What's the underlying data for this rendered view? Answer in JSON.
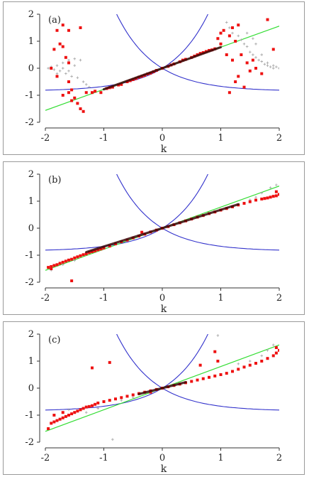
{
  "chart_data": [
    {
      "type": "scatter",
      "panel_label": "(a)",
      "xlabel": "k",
      "ylabel": "",
      "xlim": [
        -2,
        2
      ],
      "ylim": [
        -2,
        2
      ],
      "x_ticks": [
        "-2",
        "-1",
        "0",
        "1",
        "2"
      ],
      "y_ticks": [
        "2",
        "1",
        "0",
        "-1",
        "-2"
      ],
      "grid": false,
      "colors": {
        "curves": "#3333cc",
        "line": "#33dd33",
        "red": "#ee1111",
        "gray": "#aaaaaa",
        "dark": "#3a0a0a"
      },
      "lines": {
        "green": {
          "slope": 0.78
        },
        "blue_up": {
          "a": -0.85,
          "c": 0.85,
          "b": 1.55
        },
        "blue_down": {
          "a": -0.85,
          "c": 0.85,
          "b": -1.55
        }
      },
      "red_points": [
        [
          -1.8,
          1.4
        ],
        [
          -1.7,
          1.6
        ],
        [
          -1.6,
          1.4
        ],
        [
          -1.75,
          0.9
        ],
        [
          -1.85,
          0.7
        ],
        [
          -1.7,
          0.8
        ],
        [
          -1.65,
          0.4
        ],
        [
          -1.6,
          0.2
        ],
        [
          -1.9,
          0.0
        ],
        [
          -1.8,
          -0.3
        ],
        [
          -1.6,
          -0.5
        ],
        [
          -1.55,
          -0.8
        ],
        [
          -1.7,
          -1.0
        ],
        [
          -1.55,
          -1.2
        ],
        [
          -1.45,
          -1.3
        ],
        [
          -1.4,
          -1.5
        ],
        [
          -1.35,
          -1.6
        ],
        [
          -1.5,
          -1.1
        ],
        [
          -1.6,
          -0.9
        ],
        [
          -1.4,
          1.5
        ],
        [
          -1.3,
          -0.9
        ],
        [
          -1.2,
          -0.9
        ],
        [
          -1.15,
          -0.85
        ],
        [
          -1.05,
          -0.9
        ],
        [
          -0.95,
          -0.75
        ],
        [
          -0.9,
          -0.72
        ],
        [
          -0.85,
          -0.7
        ],
        [
          -0.75,
          -0.62
        ],
        [
          -0.7,
          -0.6
        ],
        [
          -0.6,
          -0.5
        ],
        [
          -0.55,
          -0.46
        ],
        [
          -0.5,
          -0.42
        ],
        [
          -0.45,
          -0.38
        ],
        [
          -0.4,
          -0.33
        ],
        [
          -0.35,
          -0.3
        ],
        [
          -0.3,
          -0.26
        ],
        [
          -0.25,
          -0.21
        ],
        [
          -0.2,
          -0.18
        ],
        [
          -0.15,
          -0.13
        ],
        [
          -0.1,
          -0.08
        ],
        [
          0.0,
          0.0
        ],
        [
          0.1,
          0.07
        ],
        [
          0.15,
          0.12
        ],
        [
          0.2,
          0.16
        ],
        [
          0.3,
          0.24
        ],
        [
          0.35,
          0.3
        ],
        [
          0.4,
          0.33
        ],
        [
          0.5,
          0.4
        ],
        [
          0.55,
          0.45
        ],
        [
          0.6,
          0.5
        ],
        [
          0.65,
          0.55
        ],
        [
          0.7,
          0.58
        ],
        [
          0.75,
          0.62
        ],
        [
          0.8,
          0.66
        ],
        [
          0.85,
          0.68
        ],
        [
          0.9,
          0.72
        ],
        [
          0.95,
          1.1
        ],
        [
          1.0,
          1.3
        ],
        [
          1.05,
          1.4
        ],
        [
          1.15,
          1.2
        ],
        [
          1.2,
          1.5
        ],
        [
          1.25,
          1.0
        ],
        [
          1.3,
          1.6
        ],
        [
          1.1,
          0.5
        ],
        [
          1.2,
          0.3
        ],
        [
          1.3,
          -0.3
        ],
        [
          1.15,
          -0.9
        ],
        [
          1.4,
          -0.7
        ],
        [
          1.5,
          -0.1
        ],
        [
          1.55,
          0.3
        ],
        [
          1.6,
          0.0
        ],
        [
          1.45,
          0.2
        ],
        [
          1.35,
          0.5
        ],
        [
          1.0,
          0.9
        ],
        [
          1.8,
          1.8
        ],
        [
          1.9,
          0.7
        ],
        [
          1.7,
          -0.2
        ],
        [
          1.25,
          -0.5
        ]
      ],
      "gray_points": [
        [
          -1.95,
          0.0
        ],
        [
          -1.9,
          0.05
        ],
        [
          -1.85,
          -0.05
        ],
        [
          -1.8,
          0.1
        ],
        [
          -1.75,
          -0.1
        ],
        [
          -1.7,
          0.2
        ],
        [
          -1.65,
          -0.2
        ],
        [
          -1.6,
          0.3
        ],
        [
          -1.55,
          -0.3
        ],
        [
          -1.5,
          0.35
        ],
        [
          -1.45,
          -0.35
        ],
        [
          -1.4,
          0.3
        ],
        [
          -1.35,
          -0.5
        ],
        [
          -1.3,
          -0.6
        ],
        [
          -1.25,
          -0.7
        ],
        [
          -1.8,
          -0.2
        ],
        [
          -1.7,
          0.0
        ],
        [
          -1.6,
          -0.1
        ],
        [
          -1.5,
          0.1
        ],
        [
          1.1,
          1.7
        ],
        [
          1.15,
          1.5
        ],
        [
          1.2,
          1.3
        ],
        [
          1.3,
          1.2
        ],
        [
          1.35,
          1.05
        ],
        [
          1.4,
          0.9
        ],
        [
          1.45,
          0.8
        ],
        [
          1.5,
          0.6
        ],
        [
          1.55,
          0.5
        ],
        [
          1.6,
          0.4
        ],
        [
          1.65,
          0.3
        ],
        [
          1.7,
          0.25
        ],
        [
          1.75,
          0.15
        ],
        [
          1.8,
          0.1
        ],
        [
          1.85,
          0.05
        ],
        [
          1.9,
          0.0
        ],
        [
          1.95,
          0.05
        ],
        [
          2.0,
          0.0
        ],
        [
          1.45,
          1.3
        ],
        [
          1.55,
          1.1
        ],
        [
          1.6,
          0.9
        ],
        [
          1.7,
          0.5
        ],
        [
          1.8,
          0.2
        ],
        [
          1.9,
          0.1
        ]
      ],
      "dark_band": {
        "x_start": -1.0,
        "x_end": 1.0,
        "slope": 0.78
      }
    },
    {
      "type": "scatter",
      "panel_label": "(b)",
      "xlabel": "k",
      "ylabel": "",
      "xlim": [
        -2,
        2
      ],
      "ylim": [
        -2,
        2
      ],
      "x_ticks": [
        "-2",
        "-1",
        "0",
        "1",
        "2"
      ],
      "y_ticks": [
        "2",
        "1",
        "0",
        "-1",
        "-2"
      ],
      "grid": false,
      "colors": {
        "curves": "#3333cc",
        "line": "#33dd33",
        "red": "#ee1111",
        "gray": "#aaaaaa",
        "dark": "#3a0a0a"
      },
      "lines": {
        "green": {
          "slope": 0.78
        },
        "blue_up": {
          "a": -0.85,
          "c": 0.85,
          "b": 1.55
        },
        "blue_down": {
          "a": -0.85,
          "c": 0.85,
          "b": -1.55
        }
      },
      "red_points": [
        [
          -1.95,
          -1.45
        ],
        [
          -1.9,
          -1.42
        ],
        [
          -1.85,
          -1.38
        ],
        [
          -1.8,
          -1.35
        ],
        [
          -1.75,
          -1.3
        ],
        [
          -1.7,
          -1.26
        ],
        [
          -1.65,
          -1.22
        ],
        [
          -1.6,
          -1.18
        ],
        [
          -1.55,
          -1.15
        ],
        [
          -1.5,
          -1.1
        ],
        [
          -1.45,
          -1.06
        ],
        [
          -1.4,
          -1.02
        ],
        [
          -1.35,
          -0.98
        ],
        [
          -1.3,
          -0.95
        ],
        [
          -1.25,
          -0.9
        ],
        [
          -1.2,
          -0.87
        ],
        [
          -1.15,
          -0.84
        ],
        [
          -1.1,
          -0.8
        ],
        [
          -1.05,
          -0.77
        ],
        [
          -1.0,
          -0.73
        ],
        [
          -0.9,
          -0.66
        ],
        [
          -0.8,
          -0.58
        ],
        [
          -0.7,
          -0.5
        ],
        [
          -0.6,
          -0.44
        ],
        [
          -0.5,
          -0.36
        ],
        [
          -0.4,
          -0.29
        ],
        [
          -0.35,
          -0.15
        ],
        [
          -0.3,
          -0.22
        ],
        [
          -0.2,
          -0.14
        ],
        [
          -0.1,
          -0.07
        ],
        [
          0.0,
          0.0
        ],
        [
          0.1,
          0.06
        ],
        [
          0.2,
          0.13
        ],
        [
          0.3,
          0.2
        ],
        [
          0.4,
          0.27
        ],
        [
          0.5,
          0.34
        ],
        [
          0.6,
          0.41
        ],
        [
          0.7,
          0.47
        ],
        [
          0.8,
          0.54
        ],
        [
          0.9,
          0.6
        ],
        [
          1.0,
          0.67
        ],
        [
          1.1,
          0.73
        ],
        [
          1.2,
          0.79
        ],
        [
          1.3,
          0.86
        ],
        [
          1.4,
          0.92
        ],
        [
          1.5,
          0.98
        ],
        [
          1.6,
          1.04
        ],
        [
          1.7,
          1.08
        ],
        [
          1.8,
          1.12
        ],
        [
          1.85,
          1.15
        ],
        [
          1.9,
          1.18
        ],
        [
          1.95,
          1.2
        ],
        [
          2.0,
          1.25
        ],
        [
          -1.55,
          -1.95
        ],
        [
          1.95,
          1.35
        ],
        [
          1.75,
          1.1
        ],
        [
          -1.9,
          -1.5
        ]
      ],
      "gray_points": [
        [
          -1.9,
          -1.55
        ],
        [
          -1.7,
          -1.35
        ],
        [
          -1.5,
          -1.2
        ],
        [
          1.7,
          1.3
        ],
        [
          1.85,
          1.5
        ],
        [
          1.95,
          1.6
        ],
        [
          1.6,
          1.15
        ],
        [
          1.5,
          1.05
        ]
      ],
      "dark_band": {
        "x_start": -1.3,
        "x_end": 1.3,
        "slope": 0.68
      }
    },
    {
      "type": "scatter",
      "panel_label": "(c)",
      "xlabel": "k",
      "ylabel": "",
      "xlim": [
        -2,
        2
      ],
      "ylim": [
        -2,
        2
      ],
      "x_ticks": [
        "-2",
        "-1",
        "0",
        "1",
        "2"
      ],
      "y_ticks": [
        "2",
        "1",
        "0",
        "-1",
        "-2"
      ],
      "grid": false,
      "colors": {
        "curves": "#3333cc",
        "line": "#33dd33",
        "red": "#ee1111",
        "gray": "#aaaaaa",
        "dark": "#3a0a0a"
      },
      "lines": {
        "green": {
          "slope": 0.8
        },
        "blue_up": {
          "a": -0.85,
          "c": 0.85,
          "b": 1.55
        },
        "blue_down": {
          "a": -0.85,
          "c": 0.85,
          "b": -1.55
        }
      },
      "red_points": [
        [
          -1.95,
          -1.5
        ],
        [
          -1.9,
          -1.3
        ],
        [
          -1.85,
          -1.25
        ],
        [
          -1.8,
          -1.2
        ],
        [
          -1.75,
          -1.15
        ],
        [
          -1.7,
          -1.1
        ],
        [
          -1.65,
          -1.05
        ],
        [
          -1.6,
          -1.0
        ],
        [
          -1.55,
          -0.95
        ],
        [
          -1.5,
          -0.9
        ],
        [
          -1.45,
          -0.85
        ],
        [
          -1.4,
          -0.8
        ],
        [
          -1.35,
          -0.75
        ],
        [
          -1.3,
          -0.7
        ],
        [
          -1.25,
          -0.68
        ],
        [
          -1.2,
          -0.65
        ],
        [
          -1.15,
          -0.6
        ],
        [
          -1.1,
          -0.55
        ],
        [
          -1.0,
          -0.5
        ],
        [
          -0.9,
          -0.45
        ],
        [
          -0.8,
          -0.4
        ],
        [
          -0.7,
          -0.35
        ],
        [
          -0.6,
          -0.3
        ],
        [
          -0.5,
          -0.25
        ],
        [
          -0.4,
          -0.2
        ],
        [
          -0.3,
          -0.15
        ],
        [
          -0.2,
          -0.1
        ],
        [
          -0.1,
          -0.05
        ],
        [
          0.0,
          0.0
        ],
        [
          0.1,
          0.05
        ],
        [
          0.2,
          0.1
        ],
        [
          0.3,
          0.15
        ],
        [
          0.4,
          0.2
        ],
        [
          0.5,
          0.25
        ],
        [
          0.6,
          0.3
        ],
        [
          0.7,
          0.35
        ],
        [
          0.8,
          0.4
        ],
        [
          0.9,
          0.45
        ],
        [
          1.0,
          0.5
        ],
        [
          1.1,
          0.55
        ],
        [
          1.2,
          0.62
        ],
        [
          1.3,
          0.7
        ],
        [
          1.4,
          0.78
        ],
        [
          1.5,
          0.85
        ],
        [
          1.6,
          0.92
        ],
        [
          1.7,
          1.0
        ],
        [
          1.8,
          1.1
        ],
        [
          1.9,
          1.2
        ],
        [
          1.95,
          1.3
        ],
        [
          2.0,
          1.4
        ],
        [
          -1.2,
          0.75
        ],
        [
          -0.9,
          0.95
        ],
        [
          0.9,
          1.35
        ],
        [
          0.95,
          1.0
        ],
        [
          0.65,
          0.85
        ],
        [
          1.95,
          1.5
        ],
        [
          -1.85,
          -1.0
        ],
        [
          -1.7,
          -0.9
        ],
        [
          -0.2,
          -0.15
        ]
      ],
      "gray_points": [
        [
          -0.85,
          -1.9
        ],
        [
          0.95,
          1.95
        ],
        [
          1.9,
          1.6
        ],
        [
          1.8,
          1.4
        ],
        [
          -1.6,
          -0.8
        ],
        [
          -1.3,
          -0.9
        ],
        [
          -1.1,
          -0.75
        ],
        [
          -0.7,
          -0.45
        ],
        [
          -0.5,
          -0.35
        ],
        [
          1.5,
          1.0
        ],
        [
          1.7,
          1.2
        ],
        [
          1.3,
          0.9
        ]
      ],
      "dark_band": {
        "x_start": -0.4,
        "x_end": 0.4,
        "slope": 0.55
      }
    }
  ]
}
